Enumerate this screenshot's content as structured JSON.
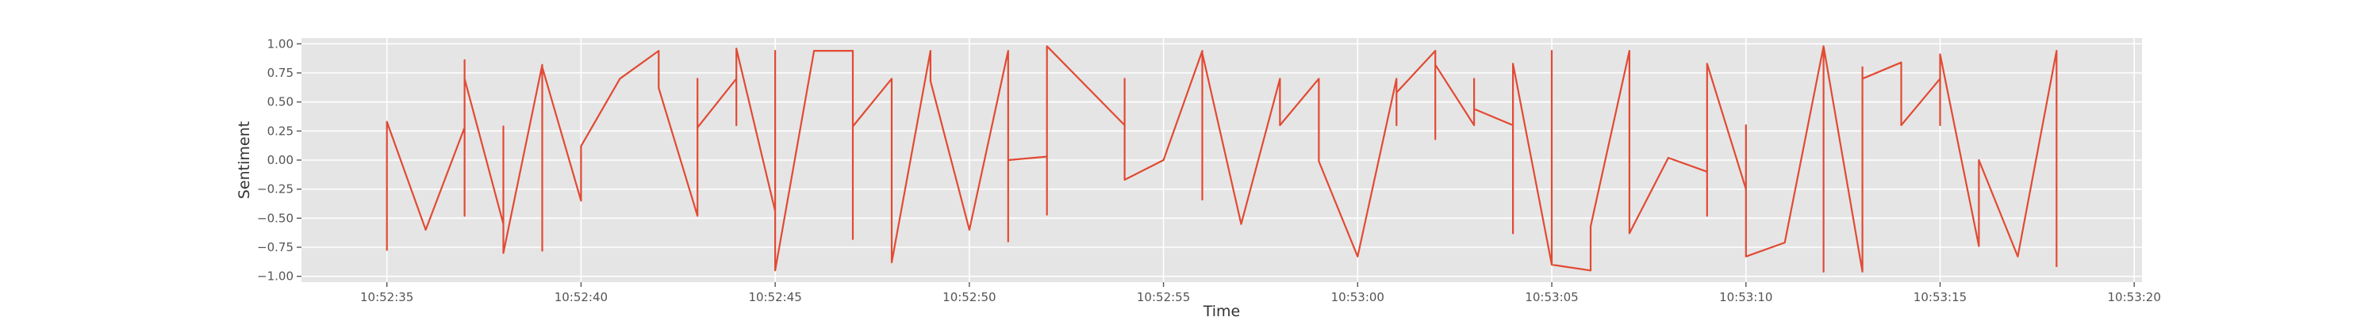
{
  "chart_data": {
    "type": "line",
    "xlabel": "Time",
    "ylabel": "Sentiment",
    "xlim": [
      "10:52:32.8",
      "10:53:20.2"
    ],
    "ylim": [
      -1.05,
      1.05
    ],
    "grid": true,
    "x_tick_labels": [
      "10:52:35",
      "10:52:40",
      "10:52:45",
      "10:52:50",
      "10:52:55",
      "10:53:00",
      "10:53:05",
      "10:53:10",
      "10:53:15",
      "10:53:20"
    ],
    "y_tick_labels": [
      "1.00",
      "0.75",
      "0.50",
      "0.25",
      "0.00",
      "−0.25",
      "−0.50",
      "−0.75",
      "−1.00"
    ],
    "y_tick_values": [
      1.0,
      0.75,
      0.5,
      0.25,
      0.0,
      -0.25,
      -0.5,
      -0.75,
      -1.0
    ],
    "colors": {
      "series": "#E24A33",
      "plot_background": "#E5E5E5",
      "grid": "#FFFFFF"
    },
    "series": [
      {
        "x": [
          "10:52:35.0",
          "10:52:35.0",
          "10:52:36.0",
          "10:52:37.0",
          "10:52:37.0",
          "10:52:37.0",
          "10:52:37.0",
          "10:52:38.0",
          "10:52:38.0",
          "10:52:38.0",
          "10:52:39.0",
          "10:52:39.0",
          "10:52:39.0",
          "10:52:40.0",
          "10:52:40.0",
          "10:52:41.0",
          "10:52:42.0",
          "10:52:42.0",
          "10:52:43.0",
          "10:52:43.0",
          "10:52:43.0",
          "10:52:44.0",
          "10:52:44.0",
          "10:52:44.0",
          "10:52:45.0",
          "10:52:45.0",
          "10:52:45.0",
          "10:52:46.0",
          "10:52:47.0",
          "10:52:47.0",
          "10:52:47.0",
          "10:52:48.0",
          "10:52:48.0",
          "10:52:49.0",
          "10:52:49.0",
          "10:52:50.0",
          "10:52:51.0",
          "10:52:51.0",
          "10:52:51.0",
          "10:52:52.0",
          "10:52:52.0",
          "10:52:52.0",
          "10:52:54.0",
          "10:52:54.0",
          "10:52:54.0",
          "10:52:55.0",
          "10:52:56.0",
          "10:52:56.0",
          "10:52:56.0",
          "10:52:57.0",
          "10:52:58.0",
          "10:52:58.0",
          "10:52:58.0",
          "10:52:59.0",
          "10:52:59.0",
          "10:53:00.0",
          "10:53:01.0",
          "10:53:01.0",
          "10:53:01.0",
          "10:53:02.0",
          "10:53:02.0",
          "10:53:02.0",
          "10:53:03.0",
          "10:53:03.0",
          "10:53:03.0",
          "10:53:04.0",
          "10:53:04.0",
          "10:53:04.0",
          "10:53:05.0",
          "10:53:05.0",
          "10:53:05.0",
          "10:53:06.0",
          "10:53:06.0",
          "10:53:07.0",
          "10:53:07.0",
          "10:53:08.0",
          "10:53:09.0",
          "10:53:09.0",
          "10:53:09.0",
          "10:53:10.0",
          "10:53:10.0",
          "10:53:10.0",
          "10:53:11.0",
          "10:53:12.0",
          "10:53:12.0",
          "10:53:12.0",
          "10:53:13.0",
          "10:53:13.0",
          "10:53:13.0",
          "10:53:14.0",
          "10:53:14.0",
          "10:53:15.0",
          "10:53:15.0",
          "10:53:15.0",
          "10:53:16.0",
          "10:53:16.0",
          "10:53:17.0",
          "10:53:18.0",
          "10:53:18.0"
        ],
        "y": [
          -0.78,
          0.33,
          -0.6,
          0.28,
          -0.48,
          0.86,
          0.7,
          -0.55,
          0.29,
          -0.8,
          0.82,
          -0.78,
          0.8,
          -0.35,
          0.12,
          0.7,
          0.94,
          0.62,
          -0.48,
          0.7,
          0.28,
          0.7,
          0.3,
          0.96,
          -0.44,
          0.94,
          -0.95,
          0.94,
          0.94,
          -0.68,
          0.29,
          0.7,
          -0.88,
          0.94,
          0.68,
          -0.6,
          0.94,
          -0.7,
          0.0,
          0.03,
          -0.47,
          0.98,
          0.3,
          0.7,
          -0.17,
          0.0,
          0.94,
          -0.34,
          0.92,
          -0.55,
          0.7,
          0.3,
          0.3,
          0.7,
          -0.01,
          -0.83,
          0.7,
          0.3,
          0.58,
          0.94,
          0.18,
          0.82,
          0.3,
          0.7,
          0.44,
          0.3,
          -0.63,
          0.83,
          -0.9,
          0.94,
          -0.9,
          -0.95,
          -0.57,
          0.94,
          -0.63,
          0.02,
          -0.1,
          -0.48,
          0.83,
          -0.25,
          0.3,
          -0.83,
          -0.71,
          0.98,
          -0.96,
          0.98,
          -0.96,
          0.8,
          0.7,
          0.84,
          0.3,
          0.7,
          0.3,
          0.91,
          -0.74,
          0.0,
          -0.83,
          0.94,
          -0.92
        ]
      }
    ]
  }
}
